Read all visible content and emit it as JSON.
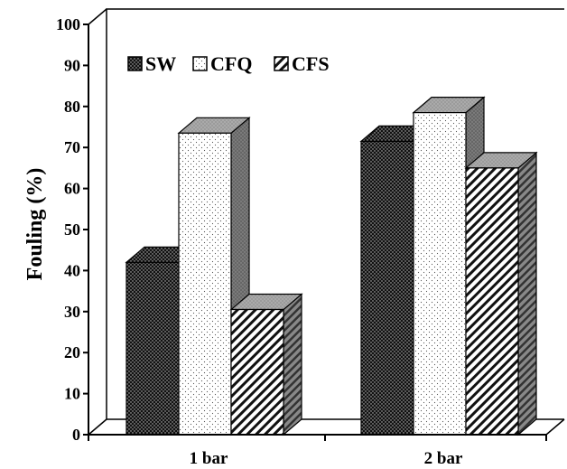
{
  "chart_data": {
    "type": "bar",
    "title": "",
    "xlabel": "",
    "ylabel": "Fouling (%)",
    "ylim": [
      0,
      100
    ],
    "yticks": [
      0,
      10,
      20,
      30,
      40,
      50,
      60,
      70,
      80,
      90,
      100
    ],
    "categories": [
      "1 bar",
      "2 bar"
    ],
    "series": [
      {
        "name": "SW",
        "values": [
          42,
          71.5
        ],
        "pattern": "dots-dark",
        "color": "#111111"
      },
      {
        "name": "CFQ",
        "values": [
          73.5,
          78.5
        ],
        "pattern": "dots-light",
        "color": "#ffffff"
      },
      {
        "name": "CFS",
        "values": [
          30.5,
          65
        ],
        "pattern": "diagonal-stripes",
        "color": "#ffffff"
      }
    ],
    "legend_position": "top-left",
    "style": "3d-column",
    "grid": false
  }
}
